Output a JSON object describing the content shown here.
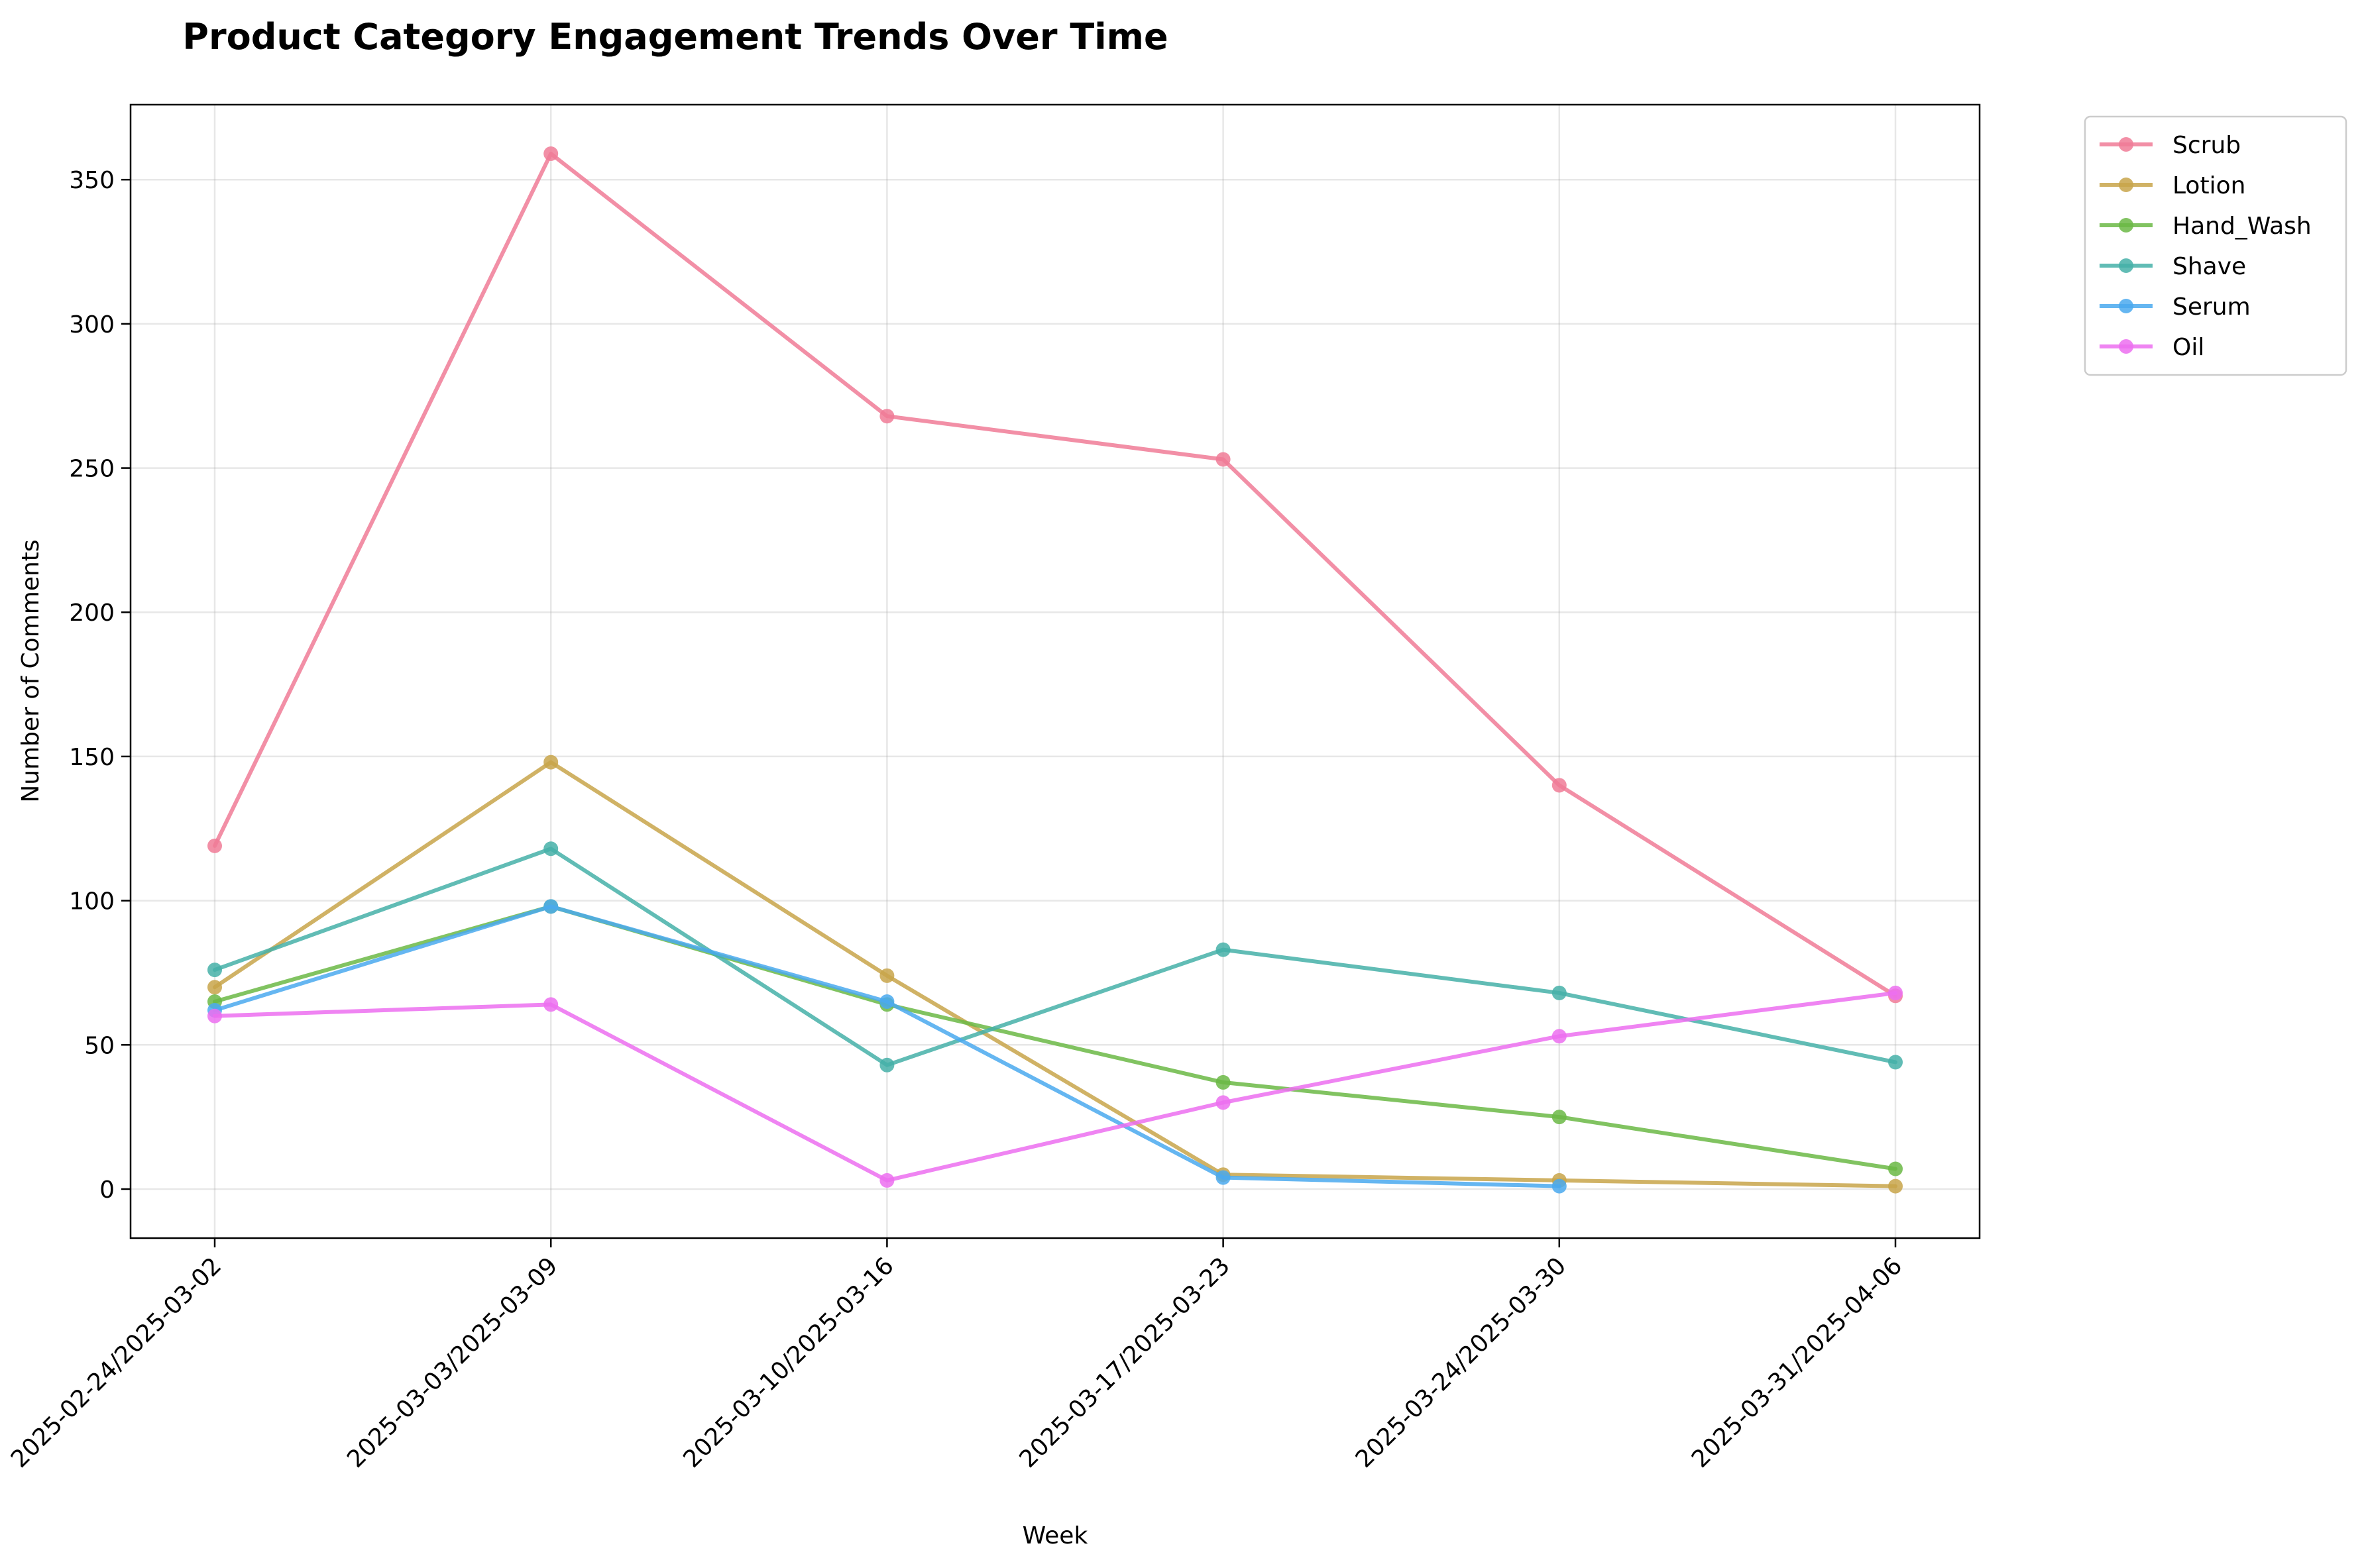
{
  "chart_data": {
    "type": "line",
    "title": "Product Category Engagement Trends Over Time",
    "xlabel": "Week",
    "ylabel": "Number of Comments",
    "categories": [
      "2025-02-24/2025-03-02",
      "2025-03-03/2025-03-09",
      "2025-03-10/2025-03-16",
      "2025-03-17/2025-03-23",
      "2025-03-24/2025-03-30",
      "2025-03-31/2025-04-06"
    ],
    "ylim": [
      -17,
      376
    ],
    "yticks": [
      0,
      50,
      100,
      150,
      200,
      250,
      300,
      350
    ],
    "grid": true,
    "legend_position": "outside top-right",
    "series": [
      {
        "name": "Scrub",
        "color": "#f07b96",
        "values": [
          119,
          359,
          268,
          253,
          140,
          67
        ]
      },
      {
        "name": "Lotion",
        "color": "#c8a44a",
        "values": [
          70,
          148,
          74,
          5,
          3,
          1
        ]
      },
      {
        "name": "Hand_Wash",
        "color": "#6bb845",
        "values": [
          65,
          98,
          64,
          37,
          25,
          7
        ]
      },
      {
        "name": "Shave",
        "color": "#45b0a8",
        "values": [
          76,
          118,
          43,
          83,
          68,
          44
        ]
      },
      {
        "name": "Serum",
        "color": "#4aa9ee",
        "values": [
          62,
          98,
          65,
          4,
          1,
          null
        ]
      },
      {
        "name": "Oil",
        "color": "#ec6ef0",
        "values": [
          60,
          64,
          3,
          30,
          53,
          68
        ]
      }
    ]
  }
}
